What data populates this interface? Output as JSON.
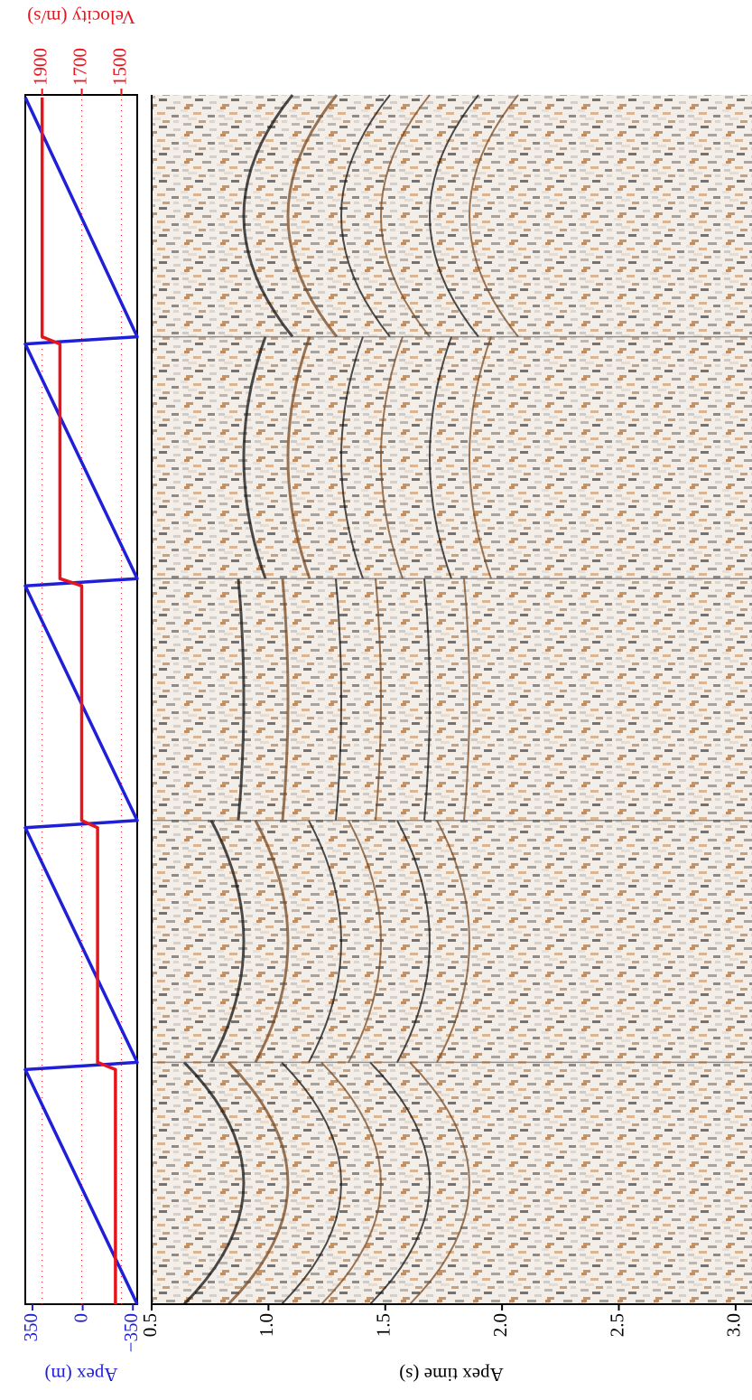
{
  "chart_data": [
    {
      "type": "line",
      "ylabel": "Apex (m)",
      "y2label": "Velocity (m/s)",
      "x": [
        0,
        97,
        100,
        197,
        200,
        297,
        300,
        397,
        400,
        499
      ],
      "xlim": [
        0,
        500
      ],
      "ylim": [
        -380,
        400
      ],
      "yticks": [
        350,
        0,
        {
          "value": -350,
          "label": "−350"
        }
      ],
      "y2lim": [
        1420,
        1985
      ],
      "y2ticks": [
        1900,
        1700,
        1500
      ],
      "y2grid": true,
      "series": [
        {
          "color": "#1f1fd8",
          "values": [
            -380,
            400,
            -380,
            400,
            -380,
            400,
            -380,
            400,
            -380,
            400
          ]
        },
        {
          "color": "#e8141c",
          "axis": "y2",
          "values": [
            1530,
            1530,
            1620,
            1620,
            1700,
            1700,
            1810,
            1810,
            1900,
            1900
          ]
        }
      ]
    },
    {
      "type": "image",
      "ylabel": "Apex time (s)",
      "ylim": [
        0.5,
        3.07
      ],
      "y_inverted": true,
      "yticks": [
        0.5,
        {
          "value": 1.0,
          "label": "1.0"
        },
        1.5,
        {
          "value": 2.0,
          "label": "2.0"
        },
        2.5,
        {
          "value": 3.0,
          "label": "3.0"
        }
      ]
    }
  ]
}
